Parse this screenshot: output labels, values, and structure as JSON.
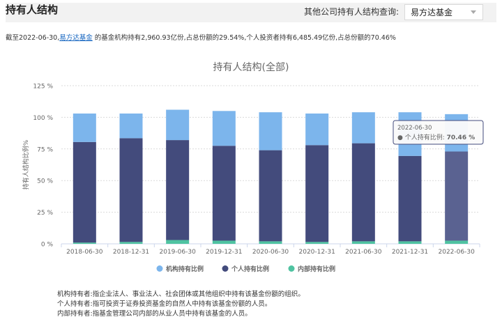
{
  "header": {
    "title": "持有人结构",
    "query_label": "其他公司持有人结构查询:",
    "select_value": "易方达基金"
  },
  "summary": {
    "prefix": "截至2022-06-30,",
    "company_link": "易方达基金",
    "suffix": " 的基金机构持有2,960.93亿份,占总份额的29.54%,个人投资者持有6,485.49亿份,占总份额的70.46%"
  },
  "tooltip": {
    "date": "2022-06-30",
    "label": "● 个人持有比例:",
    "value": "70.46 %"
  },
  "notes": [
    "机构持有者:指企业法人、事业法人、社会团体或其他组织中持有该基金份额的组织。",
    "个人持有者:指可投资于证券投资基金的自然人中持有该基金份额的人员。",
    "内部持有者:指基金管理公司内部的从业人员中持有该基金的人员。"
  ],
  "colors": {
    "institutional": "#7cb5ec",
    "individual": "#434b7c",
    "internal": "#4fc3a1",
    "individual_hover": "#5a6291"
  },
  "chart_data": {
    "type": "bar",
    "stacked": true,
    "title": "持有人结构(全部)",
    "ylabel": "持有人结构比例%",
    "xlabel": "",
    "ylim": [
      0,
      125
    ],
    "yticks": [
      0,
      25,
      50,
      75,
      100,
      125
    ],
    "ytick_labels": [
      "0 %",
      "25 %",
      "50 %",
      "75 %",
      "100 %",
      "125 %"
    ],
    "categories": [
      "2018-06-30",
      "2018-12-31",
      "2019-06-30",
      "2019-12-31",
      "2020-06-30",
      "2020-12-31",
      "2021-06-30",
      "2021-12-31",
      "2022-06-30"
    ],
    "series": [
      {
        "name": "机构持有比例",
        "values": [
          22.5,
          19.5,
          24.0,
          27.5,
          30.0,
          25.0,
          24.5,
          34.5,
          29.54
        ]
      },
      {
        "name": "个人持有比例",
        "values": [
          79.5,
          82.0,
          79.0,
          75.0,
          72.0,
          76.5,
          77.5,
          67.5,
          70.46
        ]
      },
      {
        "name": "内部持有比例",
        "values": [
          1.0,
          1.5,
          3.0,
          2.5,
          2.0,
          1.5,
          2.0,
          2.0,
          2.5
        ]
      }
    ],
    "legend_position": "bottom",
    "grid": true
  }
}
